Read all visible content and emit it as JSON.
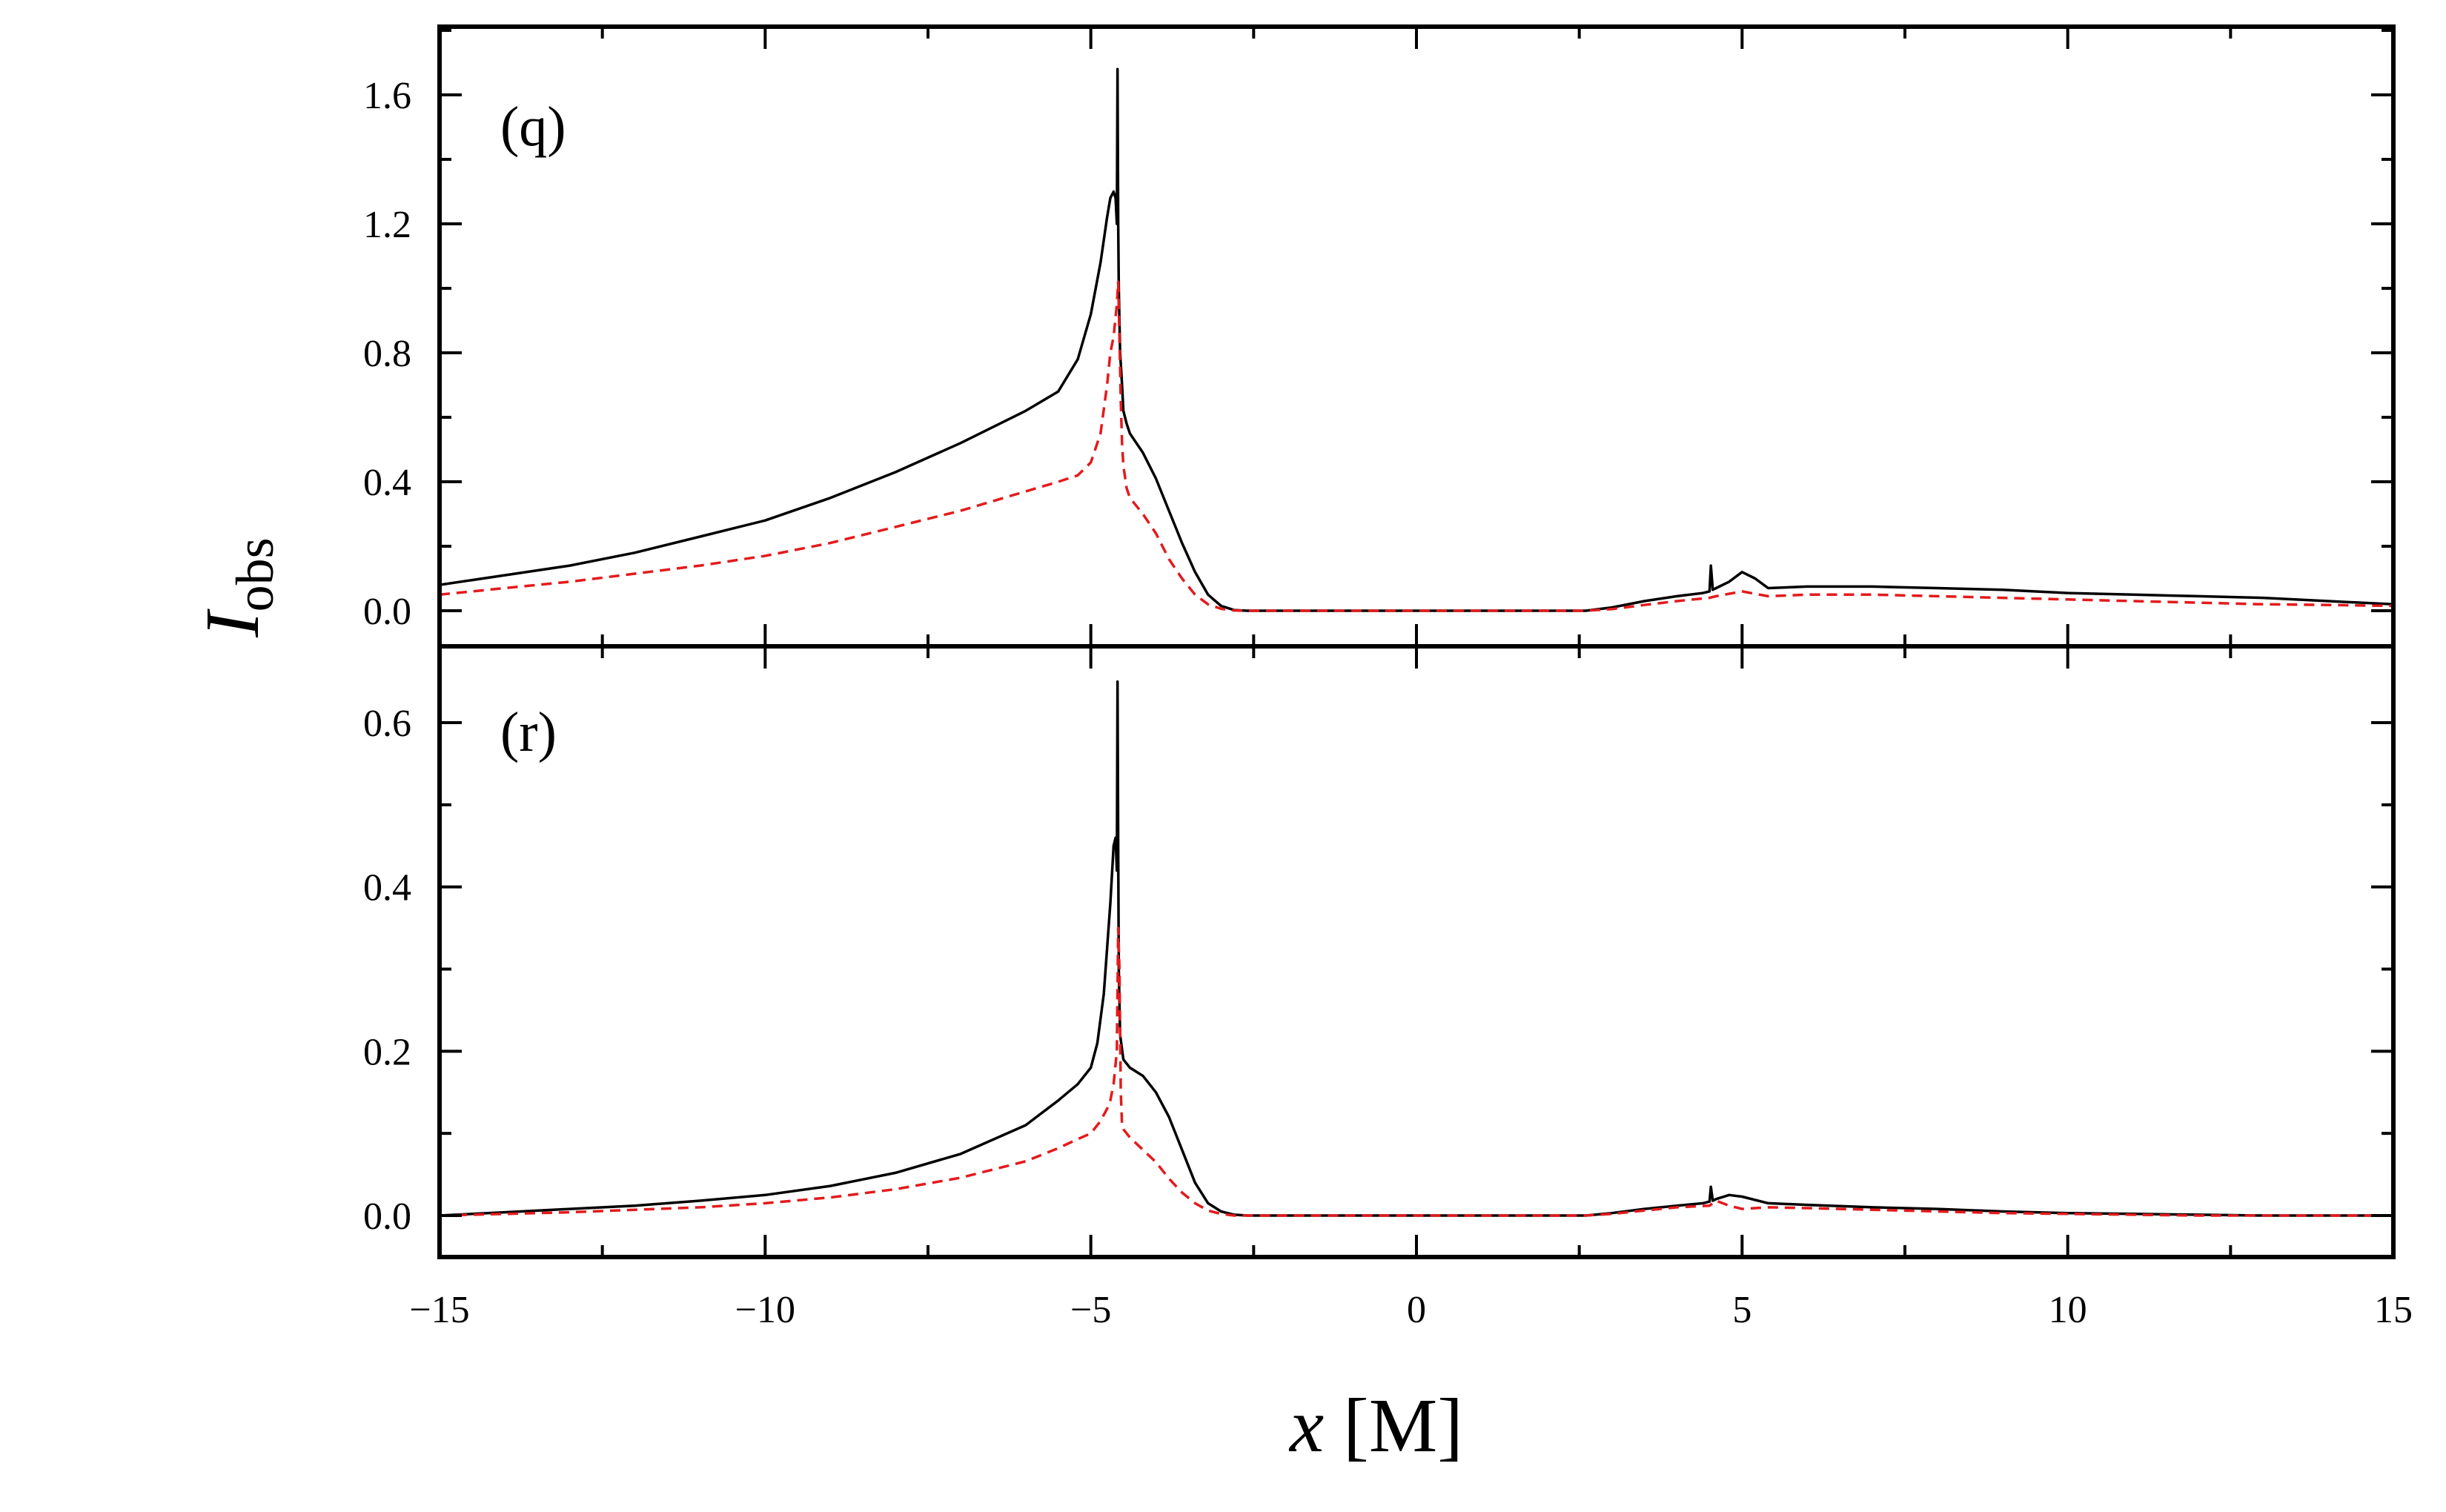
{
  "figure": {
    "xlabel_var": "x",
    "xlabel_unit": " [M]",
    "ylabel_main": "I",
    "ylabel_sub": "obs"
  },
  "colors": {
    "solid": "#000000",
    "dashed": "#e41a1c",
    "frame": "#000000"
  },
  "chart_data": [
    {
      "type": "line",
      "panel_label": "(q)",
      "xlim": [
        -15,
        15
      ],
      "ylim": [
        -0.1,
        1.7
      ],
      "x_ticks": [
        -15,
        -10,
        -5,
        0,
        5,
        10,
        15
      ],
      "y_ticks": [
        0.0,
        0.4,
        0.8,
        1.2,
        1.6
      ],
      "y_tick_labels": [
        "0.0",
        "0.4",
        "0.8",
        "1.2",
        "1.6"
      ],
      "grid": false,
      "series": [
        {
          "style": "solid",
          "x": [
            -15,
            -14,
            -13,
            -12,
            -11,
            -10,
            -9,
            -8,
            -7,
            -6,
            -5.5,
            -5.2,
            -5.0,
            -4.85,
            -4.75,
            -4.7,
            -4.65,
            -4.62,
            -4.6,
            -4.59,
            -4.58,
            -4.57,
            -4.55,
            -4.52,
            -4.5,
            -4.45,
            -4.4,
            -4.2,
            -4.0,
            -3.8,
            -3.6,
            -3.4,
            -3.2,
            -3.0,
            -2.8,
            -2.6,
            2.6,
            3.0,
            3.5,
            4.0,
            4.4,
            4.5,
            4.52,
            4.55,
            4.6,
            4.8,
            5.0,
            5.2,
            5.4,
            6.0,
            7.0,
            8.0,
            9.0,
            10.0,
            11.0,
            12.0,
            13.0,
            14.0,
            15.0
          ],
          "y": [
            0.08,
            0.11,
            0.14,
            0.18,
            0.23,
            0.28,
            0.35,
            0.43,
            0.52,
            0.62,
            0.68,
            0.78,
            0.92,
            1.08,
            1.22,
            1.28,
            1.3,
            1.28,
            1.2,
            1.68,
            1.2,
            1.0,
            0.8,
            0.7,
            0.62,
            0.58,
            0.55,
            0.49,
            0.41,
            0.31,
            0.21,
            0.12,
            0.05,
            0.015,
            0.002,
            0.0,
            0.0,
            0.01,
            0.03,
            0.045,
            0.055,
            0.06,
            0.14,
            0.065,
            0.07,
            0.09,
            0.12,
            0.1,
            0.07,
            0.075,
            0.075,
            0.07,
            0.065,
            0.055,
            0.05,
            0.045,
            0.04,
            0.03,
            0.02
          ]
        },
        {
          "style": "dashed",
          "x": [
            -15,
            -14,
            -13,
            -12,
            -11,
            -10,
            -9,
            -8,
            -7,
            -6,
            -5.5,
            -5.2,
            -5.0,
            -4.85,
            -4.75,
            -4.7,
            -4.65,
            -4.6,
            -4.58,
            -4.56,
            -4.54,
            -4.52,
            -4.5,
            -4.45,
            -4.4,
            -4.2,
            -4.0,
            -3.8,
            -3.6,
            -3.4,
            -3.2,
            -3.0,
            -2.8,
            -2.6,
            2.6,
            3.0,
            3.5,
            4.0,
            4.5,
            4.6,
            5.0,
            5.4,
            6.0,
            7.0,
            8.0,
            9.0,
            10.0,
            11.0,
            12.0,
            13.0,
            14.0,
            15.0
          ],
          "y": [
            0.05,
            0.07,
            0.09,
            0.115,
            0.14,
            0.17,
            0.21,
            0.26,
            0.31,
            0.37,
            0.4,
            0.42,
            0.46,
            0.55,
            0.7,
            0.8,
            0.85,
            0.95,
            1.02,
            0.85,
            0.65,
            0.52,
            0.45,
            0.38,
            0.35,
            0.3,
            0.24,
            0.16,
            0.1,
            0.05,
            0.02,
            0.006,
            0.001,
            0.0,
            0.0,
            0.005,
            0.018,
            0.03,
            0.04,
            0.045,
            0.06,
            0.045,
            0.05,
            0.05,
            0.045,
            0.04,
            0.035,
            0.03,
            0.025,
            0.02,
            0.018,
            0.015
          ]
        }
      ]
    },
    {
      "type": "line",
      "panel_label": "(r)",
      "xlim": [
        -15,
        15
      ],
      "ylim": [
        -0.05,
        0.7
      ],
      "x_ticks": [
        -15,
        -10,
        -5,
        0,
        5,
        10,
        15
      ],
      "x_tick_labels": [
        "−15",
        "−10",
        "−5",
        "0",
        "5",
        "10",
        "15"
      ],
      "y_ticks": [
        0.0,
        0.2,
        0.4,
        0.6
      ],
      "y_tick_labels": [
        "0.0",
        "0.2",
        "0.4",
        "0.6"
      ],
      "grid": false,
      "series": [
        {
          "style": "solid",
          "x": [
            -15,
            -14,
            -13,
            -12,
            -11,
            -10,
            -9,
            -8,
            -7,
            -6,
            -5.5,
            -5.2,
            -5.0,
            -4.9,
            -4.8,
            -4.7,
            -4.65,
            -4.62,
            -4.6,
            -4.59,
            -4.58,
            -4.57,
            -4.55,
            -4.5,
            -4.45,
            -4.4,
            -4.2,
            -4.0,
            -3.8,
            -3.6,
            -3.4,
            -3.2,
            -3.0,
            -2.8,
            -2.6,
            2.6,
            3.0,
            3.5,
            4.0,
            4.4,
            4.5,
            4.52,
            4.55,
            4.6,
            4.8,
            5.0,
            5.4,
            6.0,
            7.0,
            8.0,
            9.0,
            10.0,
            11.0,
            12.0,
            13.0,
            14.0,
            15.0
          ],
          "y": [
            0.0,
            0.004,
            0.008,
            0.012,
            0.018,
            0.025,
            0.036,
            0.052,
            0.075,
            0.11,
            0.14,
            0.16,
            0.18,
            0.21,
            0.27,
            0.38,
            0.45,
            0.46,
            0.42,
            0.65,
            0.45,
            0.3,
            0.22,
            0.19,
            0.185,
            0.18,
            0.17,
            0.15,
            0.12,
            0.08,
            0.04,
            0.015,
            0.005,
            0.001,
            0.0,
            0.0,
            0.003,
            0.008,
            0.012,
            0.015,
            0.017,
            0.035,
            0.018,
            0.02,
            0.025,
            0.023,
            0.015,
            0.013,
            0.01,
            0.008,
            0.005,
            0.003,
            0.002,
            0.001,
            0.0,
            0.0,
            0.0
          ]
        },
        {
          "style": "dashed",
          "x": [
            -15,
            -14,
            -13,
            -12,
            -11,
            -10,
            -9,
            -8,
            -7,
            -6,
            -5.5,
            -5.2,
            -5.0,
            -4.85,
            -4.75,
            -4.7,
            -4.65,
            -4.6,
            -4.58,
            -4.56,
            -4.54,
            -4.52,
            -4.5,
            -4.45,
            -4.4,
            -4.2,
            -4.0,
            -3.8,
            -3.6,
            -3.4,
            -3.2,
            -3.0,
            -2.8,
            -2.6,
            2.6,
            3.0,
            3.5,
            4.0,
            4.5,
            4.6,
            4.8,
            5.0,
            5.4,
            6.0,
            7.0,
            8.0,
            9.0,
            10.0,
            11.0,
            12.0,
            13.0,
            14.0,
            15.0
          ],
          "y": [
            0.0,
            0.002,
            0.004,
            0.007,
            0.01,
            0.015,
            0.022,
            0.032,
            0.046,
            0.066,
            0.082,
            0.093,
            0.1,
            0.115,
            0.13,
            0.14,
            0.16,
            0.2,
            0.35,
            0.3,
            0.15,
            0.11,
            0.105,
            0.1,
            0.095,
            0.08,
            0.065,
            0.045,
            0.028,
            0.015,
            0.006,
            0.002,
            0.0,
            0.0,
            0.0,
            0.002,
            0.006,
            0.01,
            0.012,
            0.018,
            0.012,
            0.008,
            0.01,
            0.009,
            0.007,
            0.005,
            0.003,
            0.002,
            0.001,
            0.0,
            0.0,
            0.0,
            0.0
          ]
        }
      ]
    }
  ]
}
